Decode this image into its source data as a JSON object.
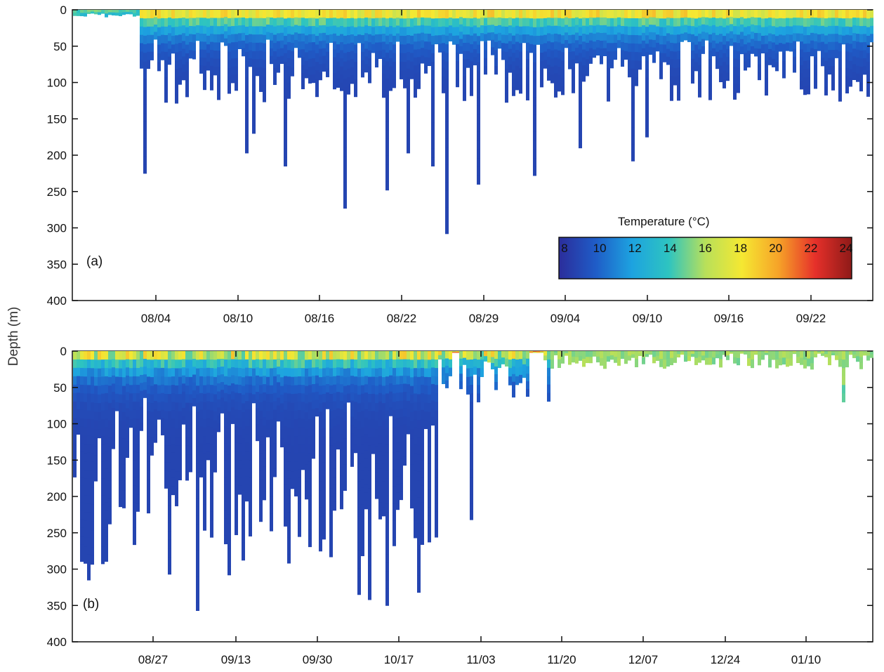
{
  "figure": {
    "ylabel": "Depth (m)",
    "colorbar": {
      "title": "Temperature (°C)",
      "ticks": [
        8,
        10,
        12,
        14,
        16,
        18,
        20,
        22,
        24
      ],
      "range": [
        8,
        24
      ],
      "colormap": [
        "#2b2d9b",
        "#1f5cc7",
        "#1da3e0",
        "#2ec4c0",
        "#b8e05a",
        "#f5e832",
        "#f6a328",
        "#e6302a",
        "#8e1a18"
      ]
    }
  },
  "chart_data": [
    {
      "type": "heatmap",
      "panel_label": "(a)",
      "xlabel": "",
      "ylabel": "Depth (m)",
      "x_tick_labels": [
        "08/04",
        "08/10",
        "08/16",
        "08/22",
        "08/29",
        "09/04",
        "09/10",
        "09/16",
        "09/22"
      ],
      "y_ticks": [
        0,
        50,
        100,
        150,
        200,
        250,
        300,
        350,
        400
      ],
      "ylim": [
        400,
        0
      ],
      "variable": "Temperature (°C)",
      "surface_temperature_range": [
        18,
        22
      ],
      "notable_max_depths_m": [
        225,
        197,
        170,
        215,
        273,
        248,
        197,
        215,
        308,
        240,
        228,
        190,
        208,
        175
      ],
      "deepest_profile_m": 308
    },
    {
      "type": "heatmap",
      "panel_label": "(b)",
      "xlabel": "",
      "ylabel": "Depth (m)",
      "x_tick_labels": [
        "08/27",
        "09/13",
        "09/30",
        "10/17",
        "11/03",
        "11/20",
        "12/07",
        "12/24",
        "01/10"
      ],
      "y_ticks": [
        0,
        50,
        100,
        150,
        200,
        250,
        300,
        350,
        400
      ],
      "ylim": [
        400,
        0
      ],
      "variable": "Temperature (°C)",
      "surface_temperature_range": [
        15,
        22
      ],
      "notable_max_depths_m": [
        315,
        307,
        357,
        308,
        335,
        342,
        350,
        332,
        232,
        70
      ],
      "deepest_profile_m": 357
    }
  ]
}
